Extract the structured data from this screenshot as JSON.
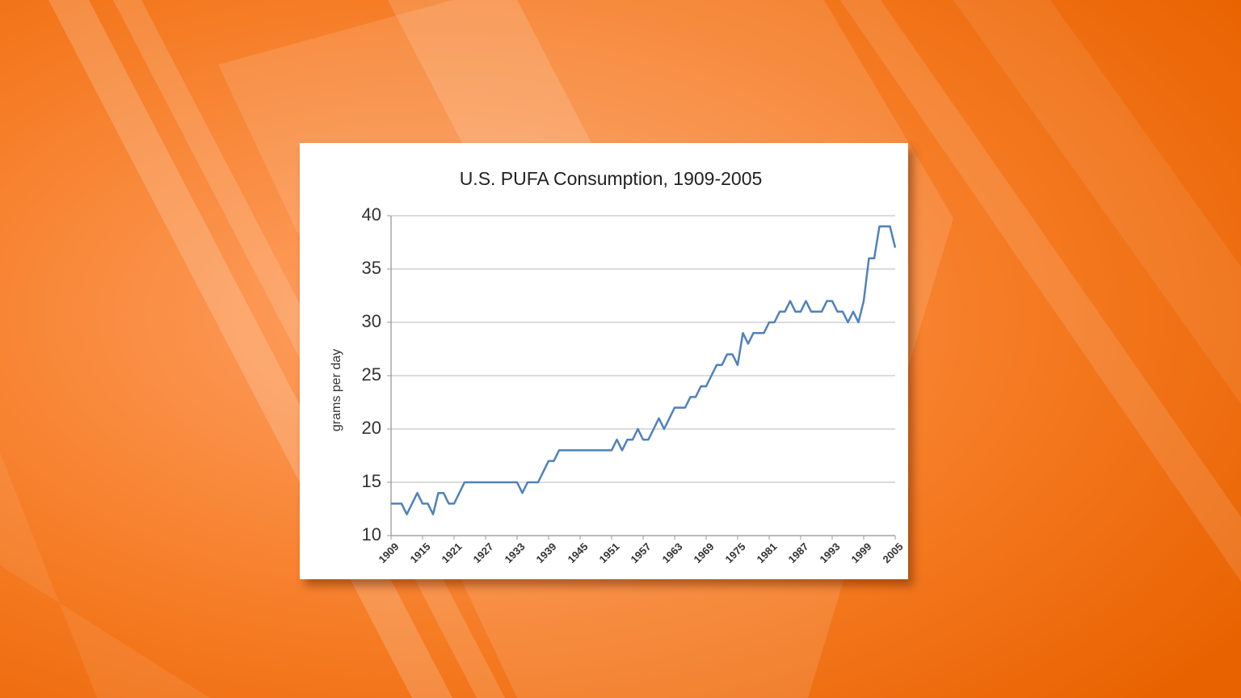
{
  "chart_data": {
    "type": "line",
    "title": "U.S. PUFA Consumption, 1909-2005",
    "y_label": "grams per day",
    "x": [
      1909,
      1910,
      1911,
      1912,
      1913,
      1914,
      1915,
      1916,
      1917,
      1918,
      1919,
      1920,
      1921,
      1922,
      1923,
      1924,
      1925,
      1926,
      1927,
      1928,
      1929,
      1930,
      1931,
      1932,
      1933,
      1934,
      1935,
      1936,
      1937,
      1938,
      1939,
      1940,
      1941,
      1942,
      1943,
      1944,
      1945,
      1946,
      1947,
      1948,
      1949,
      1950,
      1951,
      1952,
      1953,
      1954,
      1955,
      1956,
      1957,
      1958,
      1959,
      1960,
      1961,
      1962,
      1963,
      1964,
      1965,
      1966,
      1967,
      1968,
      1969,
      1970,
      1971,
      1972,
      1973,
      1974,
      1975,
      1976,
      1977,
      1978,
      1979,
      1980,
      1981,
      1982,
      1983,
      1984,
      1985,
      1986,
      1987,
      1988,
      1989,
      1990,
      1991,
      1992,
      1993,
      1994,
      1995,
      1996,
      1997,
      1998,
      1999,
      2000,
      2001,
      2002,
      2003,
      2004,
      2005
    ],
    "series": [
      {
        "name": "PUFA consumption",
        "color": "#4f81bd",
        "values": [
          13,
          13,
          13,
          12,
          13,
          14,
          13,
          13,
          12,
          14,
          14,
          13,
          13,
          14,
          15,
          15,
          15,
          15,
          15,
          15,
          15,
          15,
          15,
          15,
          15,
          14,
          15,
          15,
          15,
          16,
          17,
          17,
          18,
          18,
          18,
          18,
          18,
          18,
          18,
          18,
          18,
          18,
          18,
          19,
          18,
          19,
          19,
          20,
          19,
          19,
          20,
          21,
          20,
          21,
          22,
          22,
          22,
          23,
          23,
          24,
          24,
          25,
          26,
          26,
          27,
          27,
          26,
          29,
          28,
          29,
          29,
          29,
          30,
          30,
          31,
          31,
          32,
          31,
          31,
          32,
          31,
          31,
          31,
          32,
          32,
          31,
          31,
          30,
          31,
          30,
          32,
          36,
          36,
          39,
          39,
          39,
          37
        ]
      }
    ],
    "xlim": [
      1909,
      2005
    ],
    "xticks": [
      1909,
      1915,
      1921,
      1927,
      1933,
      1939,
      1945,
      1951,
      1957,
      1963,
      1969,
      1975,
      1981,
      1987,
      1993,
      1999,
      2005
    ],
    "ylim": [
      10,
      40
    ],
    "yticks": [
      10,
      15,
      20,
      25,
      30,
      35,
      40
    ],
    "grid": true
  }
}
